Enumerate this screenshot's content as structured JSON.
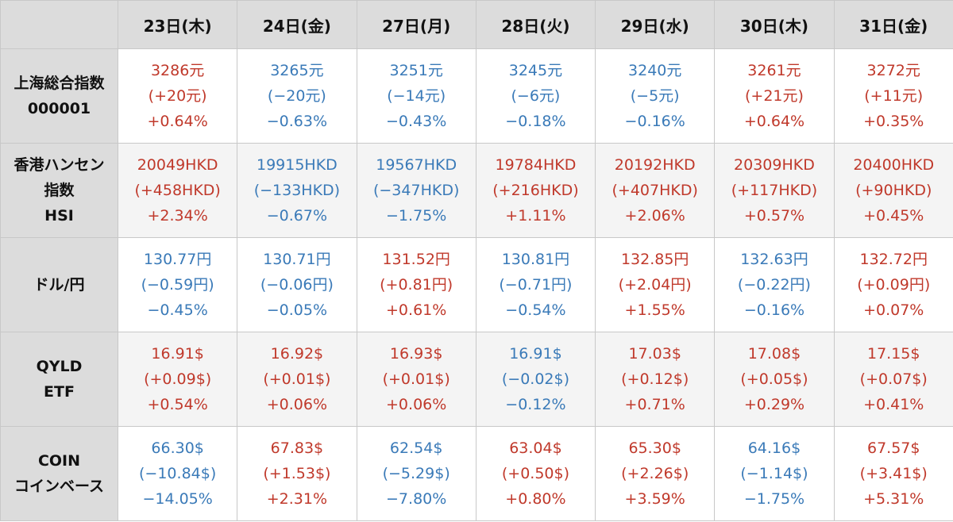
{
  "days": [
    "23日(木)",
    "24日(金)",
    "27日(月)",
    "28日(火)",
    "29日(水)",
    "30日(木)",
    "31日(金)"
  ],
  "colors": {
    "up": "#c0392b",
    "down": "#3a7ab8",
    "header_bg": "#dcdcdc"
  },
  "rows": [
    {
      "label": [
        "上海総合指数",
        "000001"
      ],
      "cells": [
        {
          "price": "3286元",
          "change": "(+20元)",
          "pct": "+0.64%",
          "dir": "up"
        },
        {
          "price": "3265元",
          "change": "(−20元)",
          "pct": "−0.63%",
          "dir": "down"
        },
        {
          "price": "3251元",
          "change": "(−14元)",
          "pct": "−0.43%",
          "dir": "down"
        },
        {
          "price": "3245元",
          "change": "(−6元)",
          "pct": "−0.18%",
          "dir": "down"
        },
        {
          "price": "3240元",
          "change": "(−5元)",
          "pct": "−0.16%",
          "dir": "down"
        },
        {
          "price": "3261元",
          "change": "(+21元)",
          "pct": "+0.64%",
          "dir": "up"
        },
        {
          "price": "3272元",
          "change": "(+11元)",
          "pct": "+0.35%",
          "dir": "up"
        }
      ]
    },
    {
      "label": [
        "香港ハンセン",
        "指数",
        "HSI"
      ],
      "cells": [
        {
          "price": "20049HKD",
          "change": "(+458HKD)",
          "pct": "+2.34%",
          "dir": "up"
        },
        {
          "price": "19915HKD",
          "change": "(−133HKD)",
          "pct": "−0.67%",
          "dir": "down"
        },
        {
          "price": "19567HKD",
          "change": "(−347HKD)",
          "pct": "−1.75%",
          "dir": "down"
        },
        {
          "price": "19784HKD",
          "change": "(+216HKD)",
          "pct": "+1.11%",
          "dir": "up"
        },
        {
          "price": "20192HKD",
          "change": "(+407HKD)",
          "pct": "+2.06%",
          "dir": "up"
        },
        {
          "price": "20309HKD",
          "change": "(+117HKD)",
          "pct": "+0.57%",
          "dir": "up"
        },
        {
          "price": "20400HKD",
          "change": "(+90HKD)",
          "pct": "+0.45%",
          "dir": "up"
        }
      ]
    },
    {
      "label": [
        "ドル/円"
      ],
      "cells": [
        {
          "price": "130.77円",
          "change": "(−0.59円)",
          "pct": "−0.45%",
          "dir": "down"
        },
        {
          "price": "130.71円",
          "change": "(−0.06円)",
          "pct": "−0.05%",
          "dir": "down"
        },
        {
          "price": "131.52円",
          "change": "(+0.81円)",
          "pct": "+0.61%",
          "dir": "up"
        },
        {
          "price": "130.81円",
          "change": "(−0.71円)",
          "pct": "−0.54%",
          "dir": "down"
        },
        {
          "price": "132.85円",
          "change": "(+2.04円)",
          "pct": "+1.55%",
          "dir": "up"
        },
        {
          "price": "132.63円",
          "change": "(−0.22円)",
          "pct": "−0.16%",
          "dir": "down"
        },
        {
          "price": "132.72円",
          "change": "(+0.09円)",
          "pct": "+0.07%",
          "dir": "up"
        }
      ]
    },
    {
      "label": [
        "QYLD",
        "ETF"
      ],
      "cells": [
        {
          "price": "16.91$",
          "change": "(+0.09$)",
          "pct": "+0.54%",
          "dir": "up"
        },
        {
          "price": "16.92$",
          "change": "(+0.01$)",
          "pct": "+0.06%",
          "dir": "up"
        },
        {
          "price": "16.93$",
          "change": "(+0.01$)",
          "pct": "+0.06%",
          "dir": "up"
        },
        {
          "price": "16.91$",
          "change": "(−0.02$)",
          "pct": "−0.12%",
          "dir": "down"
        },
        {
          "price": "17.03$",
          "change": "(+0.12$)",
          "pct": "+0.71%",
          "dir": "up"
        },
        {
          "price": "17.08$",
          "change": "(+0.05$)",
          "pct": "+0.29%",
          "dir": "up"
        },
        {
          "price": "17.15$",
          "change": "(+0.07$)",
          "pct": "+0.41%",
          "dir": "up"
        }
      ]
    },
    {
      "label": [
        "COIN",
        "コインベース"
      ],
      "cells": [
        {
          "price": "66.30$",
          "change": "(−10.84$)",
          "pct": "−14.05%",
          "dir": "down"
        },
        {
          "price": "67.83$",
          "change": "(+1.53$)",
          "pct": "+2.31%",
          "dir": "up"
        },
        {
          "price": "62.54$",
          "change": "(−5.29$)",
          "pct": "−7.80%",
          "dir": "down"
        },
        {
          "price": "63.04$",
          "change": "(+0.50$)",
          "pct": "+0.80%",
          "dir": "up"
        },
        {
          "price": "65.30$",
          "change": "(+2.26$)",
          "pct": "+3.59%",
          "dir": "up"
        },
        {
          "price": "64.16$",
          "change": "(−1.14$)",
          "pct": "−1.75%",
          "dir": "down"
        },
        {
          "price": "67.57$",
          "change": "(+3.41$)",
          "pct": "+5.31%",
          "dir": "up"
        }
      ]
    }
  ]
}
